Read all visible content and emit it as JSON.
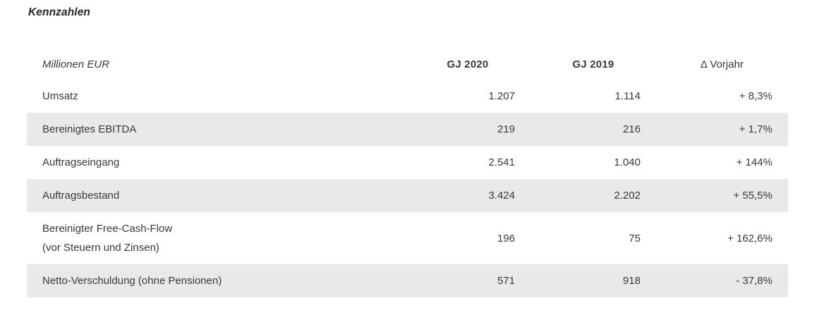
{
  "page": {
    "title": "Kennzahlen"
  },
  "table": {
    "unit_label": "Millionen EUR",
    "columns": [
      "GJ 2020",
      "GJ 2019",
      "Δ Vorjahr"
    ],
    "rows": [
      {
        "label": "Umsatz",
        "sublabel": "",
        "gj2020": "1.207",
        "gj2019": "1.114",
        "delta": "+ 8,3%"
      },
      {
        "label": "Bereinigtes EBITDA",
        "sublabel": "",
        "gj2020": "219",
        "gj2019": "216",
        "delta": "+ 1,7%"
      },
      {
        "label": "Auftragseingang",
        "sublabel": "",
        "gj2020": "2.541",
        "gj2019": "1.040",
        "delta": "+ 144%"
      },
      {
        "label": "Auftragsbestand",
        "sublabel": "",
        "gj2020": "3.424",
        "gj2019": "2.202",
        "delta": "+ 55,5%"
      },
      {
        "label": "Bereinigter Free-Cash-Flow",
        "sublabel": "(vor Steuern und Zinsen)",
        "gj2020": "196",
        "gj2019": "75",
        "delta": "+ 162,6%"
      },
      {
        "label": "Netto-Verschuldung (ohne Pensionen)",
        "sublabel": "",
        "gj2020": "571",
        "gj2019": "918",
        "delta": "- 37,8%"
      }
    ],
    "colors": {
      "stripe_bg": "#e9e9e7",
      "text": "#353a40",
      "title": "#21262d"
    }
  }
}
